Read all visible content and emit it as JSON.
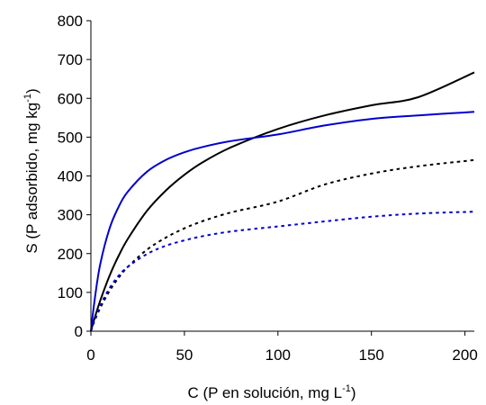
{
  "chart_data": {
    "type": "line",
    "title": "",
    "xlabel": "C (P en solución, mg L",
    "xlabel_sup": "-1",
    "xlabel_suffix": ")",
    "ylabel": "S (P adsorbido, mg kg",
    "ylabel_sup": "-1",
    "ylabel_suffix": ")",
    "xlim": [
      0,
      205
    ],
    "ylim": [
      0,
      800
    ],
    "xticks": [
      0,
      50,
      100,
      150,
      200
    ],
    "yticks": [
      0,
      100,
      200,
      300,
      400,
      500,
      600,
      700,
      800
    ],
    "grid": false,
    "legend": "none",
    "x": [
      0,
      2,
      5,
      10,
      15,
      20,
      30,
      40,
      50,
      60,
      75,
      100,
      125,
      150,
      175,
      205
    ],
    "series": [
      {
        "color": "#000000",
        "dash": "solid",
        "values": [
          0,
          34,
          79,
          143,
          196,
          240,
          310,
          362,
          403,
          436,
          474,
          521,
          556,
          582,
          603,
          667
        ]
      },
      {
        "color": "#0000cc",
        "dash": "solid",
        "values": [
          0,
          81,
          173,
          265,
          322,
          361,
          411,
          441,
          461,
          475,
          490,
          507,
          530,
          547,
          556,
          565
        ]
      },
      {
        "color": "#000000",
        "dash": "dotted",
        "values": [
          0,
          27,
          60,
          104,
          139,
          167,
          210,
          241,
          265,
          284,
          306,
          334,
          378,
          406,
          425,
          441
        ]
      },
      {
        "color": "#0000cc",
        "dash": "dotted",
        "values": [
          0,
          30,
          66,
          111,
          144,
          167,
          199,
          220,
          234,
          245,
          257,
          270,
          283,
          295,
          303,
          308
        ]
      }
    ]
  }
}
